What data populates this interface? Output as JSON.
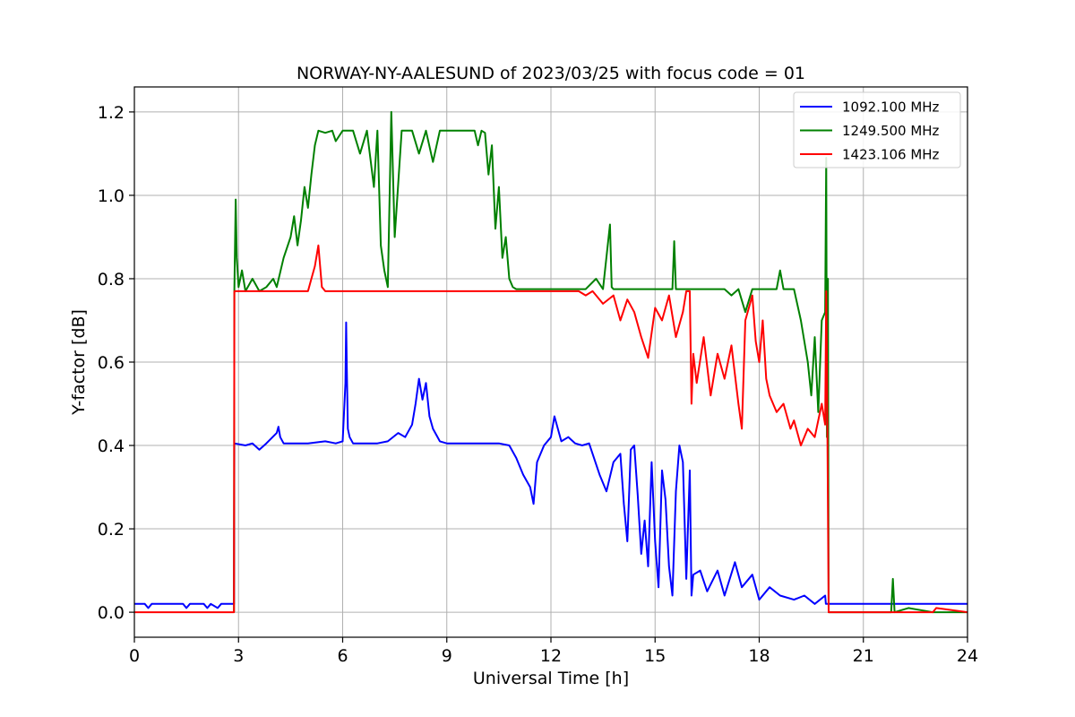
{
  "chart_data": {
    "type": "line",
    "title": "NORWAY-NY-AALESUND of 2023/03/25 with focus code = 01",
    "xlabel": "Universal Time [h]",
    "ylabel": "Y-factor [dB]",
    "xlim": [
      0,
      24
    ],
    "ylim": [
      -0.06,
      1.26
    ],
    "xticks": [
      0,
      3,
      6,
      9,
      12,
      15,
      18,
      21,
      24
    ],
    "xtick_labels": [
      "0",
      "3",
      "6",
      "9",
      "12",
      "15",
      "18",
      "21",
      "24"
    ],
    "yticks": [
      0.0,
      0.2,
      0.4,
      0.6,
      0.8,
      1.0,
      1.2
    ],
    "ytick_labels": [
      "0.0",
      "0.2",
      "0.4",
      "0.6",
      "0.8",
      "1.0",
      "1.2"
    ],
    "grid": true,
    "legend_position": "top-right",
    "series": [
      {
        "name": "1092.100 MHz",
        "color": "#0000ff",
        "x": [
          0,
          0.3,
          0.4,
          0.5,
          1.4,
          1.5,
          1.6,
          2.0,
          2.1,
          2.2,
          2.4,
          2.5,
          2.6,
          2.87,
          2.88,
          3.2,
          3.4,
          3.6,
          3.8,
          4.1,
          4.15,
          4.2,
          4.3,
          5.0,
          5.5,
          5.8,
          6.0,
          6.08,
          6.1,
          6.12,
          6.15,
          6.2,
          6.3,
          6.4,
          7.0,
          7.3,
          7.6,
          7.8,
          8.0,
          8.1,
          8.2,
          8.3,
          8.4,
          8.5,
          8.6,
          8.8,
          9.0,
          9.5,
          10.0,
          10.5,
          10.8,
          11.0,
          11.2,
          11.4,
          11.5,
          11.6,
          11.8,
          12.0,
          12.1,
          12.3,
          12.5,
          12.7,
          12.9,
          13.1,
          13.4,
          13.6,
          13.8,
          14.0,
          14.1,
          14.2,
          14.3,
          14.4,
          14.5,
          14.6,
          14.7,
          14.8,
          14.9,
          15.0,
          15.1,
          15.2,
          15.3,
          15.4,
          15.5,
          15.6,
          15.7,
          15.8,
          15.9,
          16.0,
          16.05,
          16.1,
          16.3,
          16.5,
          16.8,
          17.0,
          17.3,
          17.5,
          17.8,
          18.0,
          18.3,
          18.6,
          19.0,
          19.3,
          19.6,
          19.9,
          19.92,
          19.95,
          20.0,
          20.5,
          21.0,
          21.5,
          22.0,
          22.5,
          23.0,
          23.5,
          24.0
        ],
        "y": [
          0.02,
          0.02,
          0.01,
          0.02,
          0.02,
          0.01,
          0.02,
          0.02,
          0.01,
          0.02,
          0.01,
          0.02,
          0.02,
          0.02,
          0.405,
          0.4,
          0.405,
          0.39,
          0.405,
          0.43,
          0.445,
          0.42,
          0.405,
          0.405,
          0.41,
          0.405,
          0.41,
          0.55,
          0.695,
          0.59,
          0.44,
          0.42,
          0.405,
          0.405,
          0.405,
          0.41,
          0.43,
          0.42,
          0.45,
          0.5,
          0.56,
          0.51,
          0.55,
          0.47,
          0.44,
          0.41,
          0.405,
          0.405,
          0.405,
          0.405,
          0.4,
          0.37,
          0.33,
          0.3,
          0.26,
          0.36,
          0.4,
          0.42,
          0.47,
          0.41,
          0.42,
          0.405,
          0.4,
          0.405,
          0.33,
          0.29,
          0.36,
          0.38,
          0.26,
          0.17,
          0.39,
          0.4,
          0.28,
          0.14,
          0.22,
          0.11,
          0.36,
          0.17,
          0.06,
          0.34,
          0.27,
          0.11,
          0.04,
          0.29,
          0.4,
          0.36,
          0.08,
          0.34,
          0.04,
          0.09,
          0.1,
          0.05,
          0.1,
          0.04,
          0.12,
          0.06,
          0.09,
          0.03,
          0.06,
          0.04,
          0.03,
          0.04,
          0.02,
          0.04,
          0.02,
          0.02,
          0.02,
          0.02,
          0.02,
          0.02,
          0.02,
          0.02,
          0.02,
          0.02,
          0.02
        ]
      },
      {
        "name": "1249.500 MHz",
        "color": "#008000",
        "x": [
          2.87,
          2.88,
          2.92,
          2.95,
          3.0,
          3.1,
          3.2,
          3.4,
          3.6,
          3.8,
          4.0,
          4.1,
          4.3,
          4.5,
          4.6,
          4.7,
          4.8,
          4.9,
          5.0,
          5.1,
          5.2,
          5.3,
          5.5,
          5.7,
          5.8,
          6.0,
          6.2,
          6.3,
          6.5,
          6.7,
          6.9,
          7.0,
          7.1,
          7.2,
          7.3,
          7.4,
          7.5,
          7.7,
          7.8,
          8.0,
          8.2,
          8.4,
          8.6,
          8.8,
          9.0,
          9.2,
          9.4,
          9.6,
          9.8,
          9.9,
          10.0,
          10.1,
          10.2,
          10.3,
          10.4,
          10.5,
          10.6,
          10.7,
          10.8,
          10.9,
          11.0,
          11.2,
          11.5,
          12.0,
          12.5,
          13.0,
          13.3,
          13.5,
          13.7,
          13.75,
          13.8,
          14.0,
          14.5,
          15.0,
          15.5,
          15.55,
          15.6,
          16.0,
          16.5,
          17.0,
          17.2,
          17.4,
          17.6,
          17.8,
          18.0,
          18.5,
          18.6,
          18.7,
          19.0,
          19.2,
          19.4,
          19.5,
          19.6,
          19.7,
          19.8,
          19.9,
          19.93,
          19.95,
          19.98,
          20.0,
          21.0,
          21.8,
          21.85,
          21.9,
          22.3,
          23.0,
          24.0
        ],
        "y": [
          0.0,
          0.77,
          0.99,
          0.85,
          0.78,
          0.82,
          0.77,
          0.8,
          0.77,
          0.78,
          0.8,
          0.78,
          0.85,
          0.9,
          0.95,
          0.88,
          0.94,
          1.02,
          0.97,
          1.05,
          1.12,
          1.155,
          1.15,
          1.155,
          1.13,
          1.155,
          1.155,
          1.155,
          1.1,
          1.155,
          1.02,
          1.155,
          0.88,
          0.82,
          0.78,
          1.2,
          0.9,
          1.155,
          1.155,
          1.155,
          1.1,
          1.155,
          1.08,
          1.155,
          1.155,
          1.155,
          1.155,
          1.155,
          1.155,
          1.12,
          1.155,
          1.15,
          1.05,
          1.12,
          0.92,
          1.02,
          0.85,
          0.9,
          0.8,
          0.78,
          0.775,
          0.775,
          0.775,
          0.775,
          0.775,
          0.775,
          0.8,
          0.775,
          0.93,
          0.78,
          0.775,
          0.775,
          0.775,
          0.775,
          0.775,
          0.89,
          0.775,
          0.775,
          0.775,
          0.775,
          0.76,
          0.775,
          0.72,
          0.775,
          0.775,
          0.775,
          0.82,
          0.775,
          0.775,
          0.7,
          0.6,
          0.52,
          0.66,
          0.48,
          0.7,
          0.72,
          1.09,
          0.42,
          0.8,
          0.0,
          0.0,
          0.0,
          0.08,
          0.0,
          0.01,
          0.0,
          0.0
        ]
      },
      {
        "name": "1423.106 MHz",
        "color": "#ff0000",
        "x": [
          0,
          2.87,
          2.88,
          4.0,
          5.0,
          5.1,
          5.2,
          5.3,
          5.4,
          5.5,
          5.6,
          5.7,
          6.0,
          7.0,
          8.0,
          9.0,
          10.0,
          11.0,
          12.0,
          12.8,
          13.0,
          13.2,
          13.5,
          13.8,
          14.0,
          14.2,
          14.4,
          14.6,
          14.8,
          15.0,
          15.2,
          15.4,
          15.6,
          15.8,
          15.9,
          16.0,
          16.05,
          16.1,
          16.2,
          16.4,
          16.6,
          16.8,
          17.0,
          17.2,
          17.4,
          17.5,
          17.6,
          17.8,
          17.9,
          18.0,
          18.1,
          18.2,
          18.3,
          18.5,
          18.7,
          18.9,
          19.0,
          19.2,
          19.4,
          19.6,
          19.8,
          19.9,
          19.93,
          19.95,
          20.0,
          21.0,
          23.0,
          23.1,
          24.0
        ],
        "y": [
          0.0,
          0.0,
          0.77,
          0.77,
          0.77,
          0.8,
          0.83,
          0.88,
          0.78,
          0.77,
          0.77,
          0.77,
          0.77,
          0.77,
          0.77,
          0.77,
          0.77,
          0.77,
          0.77,
          0.77,
          0.76,
          0.77,
          0.74,
          0.76,
          0.7,
          0.75,
          0.72,
          0.66,
          0.61,
          0.73,
          0.7,
          0.76,
          0.66,
          0.72,
          0.77,
          0.77,
          0.5,
          0.62,
          0.55,
          0.66,
          0.52,
          0.62,
          0.56,
          0.64,
          0.5,
          0.44,
          0.7,
          0.76,
          0.65,
          0.6,
          0.7,
          0.56,
          0.52,
          0.48,
          0.5,
          0.44,
          0.46,
          0.4,
          0.44,
          0.42,
          0.5,
          0.45,
          0.77,
          0.6,
          0.0,
          0.0,
          0.0,
          0.01,
          0.0
        ]
      }
    ]
  }
}
